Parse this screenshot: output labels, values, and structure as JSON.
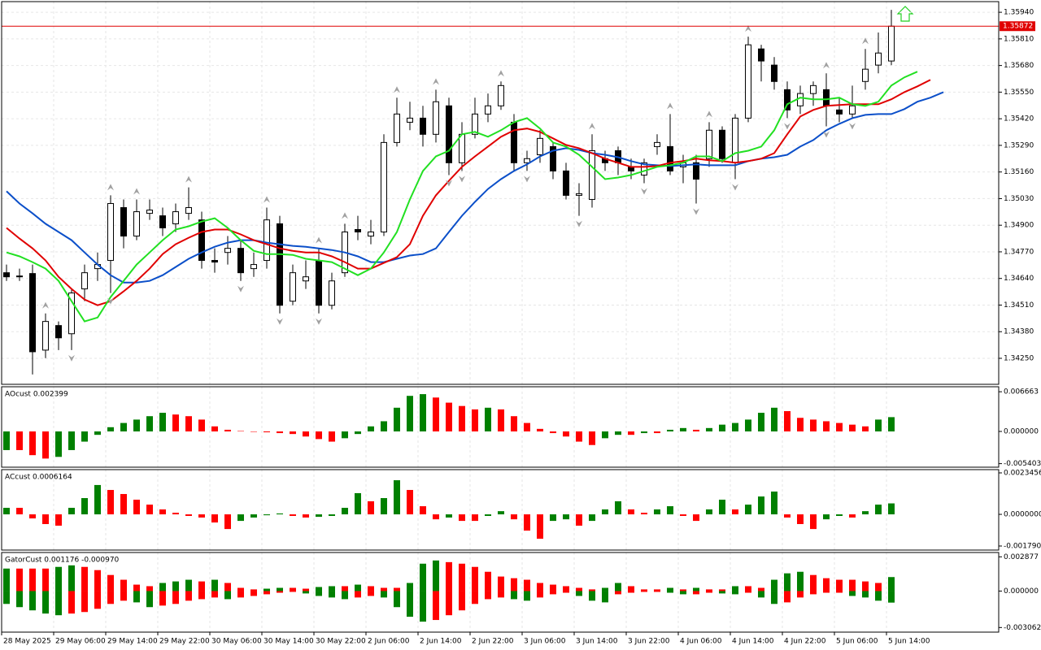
{
  "chart_data": [
    {
      "type": "candlestick",
      "x_labels": [
        "28 May 2025",
        "29 May 06:00",
        "29 May 14:00",
        "29 May 22:00",
        "30 May 06:00",
        "30 May 14:00",
        "30 May 22:00",
        "2 Jun 06:00",
        "2 Jun 14:00",
        "2 Jun 22:00",
        "3 Jun 06:00",
        "3 Jun 14:00",
        "3 Jun 22:00",
        "4 Jun 06:00",
        "4 Jun 14:00",
        "4 Jun 22:00",
        "5 Jun 06:00",
        "5 Jun 14:00"
      ],
      "open": [
        1.34668,
        1.34648,
        1.34664,
        1.3429,
        1.3441,
        1.3437,
        1.34589,
        1.34688,
        1.34728,
        1.34986,
        1.34847,
        1.34958,
        1.34946,
        1.34907,
        1.34958,
        1.34926,
        1.34728,
        1.34767,
        1.34787,
        1.34688,
        1.34728,
        1.34907,
        1.34529,
        1.34628,
        1.34728,
        1.34509,
        1.34668,
        1.34879,
        1.34847,
        1.34867,
        1.35304,
        1.35403,
        1.35423,
        1.35344,
        1.35483,
        1.35205,
        1.35344,
        1.35443,
        1.35483,
        1.35403,
        1.35205,
        1.35244,
        1.35284,
        1.35165,
        1.35046,
        1.35026,
        1.35225,
        1.35264,
        1.35185,
        1.35145,
        1.35284,
        1.35284,
        1.35185,
        1.35205,
        1.35225,
        1.35364,
        1.35205,
        1.35423,
        1.35761,
        1.35682,
        1.35562,
        1.35483,
        1.35543,
        1.35562,
        1.35463,
        1.35443,
        1.35602,
        1.35682,
        1.35702
      ],
      "high": [
        1.34708,
        1.34688,
        1.34708,
        1.34469,
        1.3443,
        1.34589,
        1.34708,
        1.34767,
        1.35046,
        1.35026,
        1.35026,
        1.35026,
        1.34986,
        1.35006,
        1.35085,
        1.34966,
        1.34787,
        1.34847,
        1.34827,
        1.34767,
        1.34986,
        1.34946,
        1.34708,
        1.34728,
        1.34787,
        1.34668,
        1.34907,
        1.34946,
        1.34926,
        1.35344,
        1.35523,
        1.35503,
        1.35483,
        1.35562,
        1.35523,
        1.35403,
        1.35523,
        1.35543,
        1.35602,
        1.35443,
        1.35264,
        1.35364,
        1.35304,
        1.35205,
        1.35105,
        1.35344,
        1.35264,
        1.35284,
        1.35225,
        1.35225,
        1.35344,
        1.35443,
        1.35244,
        1.35244,
        1.35403,
        1.35383,
        1.35443,
        1.35821,
        1.35781,
        1.35721,
        1.35602,
        1.35582,
        1.35602,
        1.35642,
        1.35523,
        1.35582,
        1.35761,
        1.35841,
        1.35952
      ],
      "low": [
        1.34628,
        1.34628,
        1.34171,
        1.34251,
        1.3429,
        1.3429,
        1.34529,
        1.34628,
        1.34569,
        1.34787,
        1.34827,
        1.34926,
        1.34847,
        1.34867,
        1.34926,
        1.34688,
        1.34668,
        1.34708,
        1.34628,
        1.34648,
        1.34688,
        1.34469,
        1.34509,
        1.34589,
        1.34469,
        1.34489,
        1.34648,
        1.34827,
        1.34807,
        1.34847,
        1.35284,
        1.35364,
        1.35284,
        1.35304,
        1.35145,
        1.35165,
        1.35324,
        1.35403,
        1.35463,
        1.35165,
        1.35165,
        1.35205,
        1.35125,
        1.35026,
        1.34946,
        1.34986,
        1.35165,
        1.35145,
        1.35125,
        1.35105,
        1.35244,
        1.35145,
        1.35105,
        1.35006,
        1.35185,
        1.35205,
        1.35125,
        1.35403,
        1.35602,
        1.35562,
        1.35423,
        1.35443,
        1.35483,
        1.35383,
        1.35403,
        1.35423,
        1.35562,
        1.35642,
        1.35682
      ],
      "close": [
        1.34648,
        1.34652,
        1.34282,
        1.3443,
        1.3435,
        1.34569,
        1.34668,
        1.34708,
        1.35006,
        1.34847,
        1.34966,
        1.34974,
        1.34887,
        1.34966,
        1.34986,
        1.34728,
        1.3472,
        1.34787,
        1.34668,
        1.34708,
        1.34926,
        1.34509,
        1.34668,
        1.34648,
        1.34509,
        1.34628,
        1.34867,
        1.34867,
        1.34867,
        1.35304,
        1.35443,
        1.35423,
        1.35344,
        1.35503,
        1.35205,
        1.35344,
        1.35443,
        1.35483,
        1.35582,
        1.35205,
        1.35225,
        1.35324,
        1.35165,
        1.35046,
        1.35054,
        1.35264,
        1.35205,
        1.35205,
        1.35165,
        1.35205,
        1.35304,
        1.35165,
        1.35205,
        1.35125,
        1.35364,
        1.35225,
        1.35423,
        1.35781,
        1.35702,
        1.35602,
        1.35463,
        1.35543,
        1.35582,
        1.35483,
        1.35443,
        1.35483,
        1.35662,
        1.35741,
        1.35872
      ],
      "bull_color": "#ffffff",
      "bear_color": "#000000",
      "lines": [
        {
          "color": "#0b4fc9",
          "values": [
            1.35066,
            1.35006,
            1.34958,
            1.34907,
            1.34867,
            1.34827,
            1.34767,
            1.34708,
            1.34656,
            1.3462,
            1.3462,
            1.34628,
            1.34656,
            1.34696,
            1.34736,
            1.34767,
            1.34795,
            1.34815,
            1.34827,
            1.34827,
            1.34815,
            1.34807,
            1.34799,
            1.34795,
            1.34787,
            1.34779,
            1.34767,
            1.34748,
            1.3472,
            1.3472,
            1.34736,
            1.34752,
            1.34759,
            1.34787,
            1.34867,
            1.34946,
            1.35014,
            1.35077,
            1.35125,
            1.35165,
            1.35197,
            1.35236,
            1.35264,
            1.35276,
            1.35268,
            1.35252,
            1.35244,
            1.35232,
            1.35213,
            1.35197,
            1.35193,
            1.35189,
            1.35193,
            1.35197,
            1.35193,
            1.35193,
            1.35193,
            1.35213,
            1.35225,
            1.35232,
            1.35244,
            1.35284,
            1.35316,
            1.35364,
            1.35395,
            1.35423,
            1.35439,
            1.35443,
            1.35443,
            1.35467,
            1.35503,
            1.35523,
            1.3555
          ]
        },
        {
          "color": "#e00000",
          "values": [
            1.34887,
            1.34835,
            1.34787,
            1.34728,
            1.34648,
            1.34589,
            1.34537,
            1.34509,
            1.34529,
            1.34577,
            1.34628,
            1.34688,
            1.34759,
            1.34807,
            1.34839,
            1.34867,
            1.34879,
            1.34879,
            1.34855,
            1.34827,
            1.34807,
            1.34787,
            1.34775,
            1.34767,
            1.34767,
            1.34748,
            1.3472,
            1.34688,
            1.34688,
            1.34716,
            1.34744,
            1.34807,
            1.34946,
            1.35046,
            1.35117,
            1.35185,
            1.35236,
            1.35284,
            1.35332,
            1.35364,
            1.35372,
            1.35356,
            1.35324,
            1.35292,
            1.35276,
            1.35252,
            1.35225,
            1.35205,
            1.35185,
            1.35185,
            1.35189,
            1.35205,
            1.35213,
            1.35225,
            1.35217,
            1.35213,
            1.35205,
            1.35213,
            1.35225,
            1.35252,
            1.35344,
            1.35431,
            1.35463,
            1.35483,
            1.35487,
            1.35491,
            1.35491,
            1.35491,
            1.35515,
            1.3555,
            1.35578,
            1.3561,
            null
          ]
        },
        {
          "color": "#22e022",
          "values": [
            1.34767,
            1.34748,
            1.3472,
            1.34688,
            1.34628,
            1.34529,
            1.3443,
            1.34449,
            1.34549,
            1.34628,
            1.34708,
            1.34767,
            1.34827,
            1.34879,
            1.34895,
            1.34918,
            1.34934,
            1.34887,
            1.34827,
            1.34775,
            1.34759,
            1.34759,
            1.34755,
            1.34736,
            1.34728,
            1.3472,
            1.34688,
            1.34656,
            1.34688,
            1.34767,
            1.34867,
            1.35026,
            1.35165,
            1.35236,
            1.35264,
            1.35344,
            1.35356,
            1.35332,
            1.35364,
            1.35403,
            1.35423,
            1.35372,
            1.35304,
            1.35284,
            1.35244,
            1.35185,
            1.35125,
            1.35133,
            1.35145,
            1.35165,
            1.35185,
            1.35193,
            1.35205,
            1.35236,
            1.35236,
            1.35213,
            1.35252,
            1.35264,
            1.35284,
            1.35364,
            1.35491,
            1.35523,
            1.35515,
            1.35515,
            1.35523,
            1.35491,
            1.35483,
            1.35503,
            1.35582,
            1.35622,
            1.3565,
            null,
            null
          ]
        }
      ],
      "fractals_up": [
        3,
        8,
        10,
        14,
        20,
        24,
        26,
        30,
        33,
        38,
        45,
        51,
        54,
        57,
        63,
        66
      ],
      "fractals_down": [
        5,
        8,
        18,
        21,
        24,
        34,
        35,
        40,
        44,
        49,
        53,
        56,
        60,
        63,
        65
      ],
      "fractal_color": "#a0a0a0",
      "current_price": 1.35872,
      "current_price_color": "#e00000",
      "ylim": [
        1.34123,
        1.35992
      ],
      "yticks": [
        {
          "value": 1.3594,
          "label": "1.35940"
        },
        {
          "value": 1.3581,
          "label": "1.35810"
        },
        {
          "value": 1.3568,
          "label": "1.35680"
        },
        {
          "value": 1.3555,
          "label": "1.35550"
        },
        {
          "value": 1.3542,
          "label": "1.35420"
        },
        {
          "value": 1.3529,
          "label": "1.35290"
        },
        {
          "value": 1.3516,
          "label": "1.35160"
        },
        {
          "value": 1.3503,
          "label": "1.35030"
        },
        {
          "value": 1.349,
          "label": "1.34900"
        },
        {
          "value": 1.3477,
          "label": "1.34770"
        },
        {
          "value": 1.3464,
          "label": "1.34640"
        },
        {
          "value": 1.3451,
          "label": "1.34510"
        },
        {
          "value": 1.3438,
          "label": "1.34380"
        },
        {
          "value": 1.3425,
          "label": "1.34250"
        }
      ],
      "grid": true
    },
    {
      "type": "histogram",
      "label": "AOcust 0.002399",
      "up_color": "#008000",
      "down_color": "#ff0000",
      "values": [
        -0.00313,
        -0.00313,
        -0.00398,
        -0.00455,
        -0.00427,
        -0.00313,
        -0.00171,
        -0.00057,
        0.00071,
        0.00142,
        0.00199,
        0.00256,
        0.00313,
        0.00284,
        0.00256,
        0.00199,
        0.00085,
        0.00028,
        7e-05,
        -7e-05,
        -0.00014,
        -0.00028,
        -0.00043,
        -0.00085,
        -0.00128,
        -0.00171,
        -0.00114,
        -0.00043,
        0.00085,
        0.00171,
        0.00398,
        0.00597,
        0.00626,
        0.00569,
        0.00483,
        0.00427,
        0.0037,
        0.00398,
        0.0037,
        0.00256,
        0.00142,
        0.00043,
        -0.00028,
        -0.00085,
        -0.00171,
        -0.00228,
        -0.00114,
        -0.00057,
        -0.00057,
        -0.00028,
        -0.00028,
        0.00028,
        0.00057,
        0.00028,
        0.00057,
        0.00114,
        0.00142,
        0.00199,
        0.00313,
        0.00398,
        0.00341,
        0.00228,
        0.00199,
        0.00171,
        0.00142,
        0.00114,
        0.00085,
        0.00199,
        0.0024
      ],
      "ylim": [
        -0.006,
        0.0075
      ],
      "yticks": [
        0.006663,
        {
          "value": 0,
          "label": "0.000000"
        },
        -0.005403
      ]
    },
    {
      "type": "histogram",
      "label": "ACcust 0.0006164",
      "up_color": "#008000",
      "down_color": "#ff0000",
      "values": [
        0.00037,
        0.00037,
        -0.00023,
        -0.00055,
        -0.00064,
        0.00037,
        0.00092,
        0.00166,
        0.00138,
        0.00115,
        0.00083,
        0.00055,
        0.00028,
        9e-05,
        -9e-05,
        -0.00018,
        -0.00046,
        -0.00083,
        -0.00037,
        -0.00018,
        -5e-05,
        5e-05,
        -9e-05,
        -0.00018,
        -0.00014,
        -9e-05,
        0.00037,
        0.0012,
        0.00074,
        0.00092,
        0.00193,
        0.00138,
        0.00046,
        -0.00028,
        -0.00018,
        -0.00037,
        -0.00037,
        -9e-05,
        0.00018,
        -0.00028,
        -0.00092,
        -0.00138,
        -0.00037,
        -0.00028,
        -0.00064,
        -0.00037,
        0.00028,
        0.00074,
        0.00028,
        9e-05,
        0.00028,
        0.00046,
        -9e-05,
        -0.00037,
        0.00028,
        0.00083,
        0.00028,
        0.00055,
        0.00101,
        0.00129,
        -0.00018,
        -0.00055,
        -0.00083,
        -0.00028,
        -9e-05,
        -0.00018,
        0.00018,
        0.00055,
        0.00062
      ],
      "ylim": [
        -0.00202,
        0.00253
      ],
      "yticks": [
        0.0023456,
        {
          "value": 0,
          "label": "0.0000000"
        },
        {
          "value": -0.00179,
          "label": "-0.0017900"
        }
      ]
    },
    {
      "type": "gator",
      "label": "GatorCust 0.001176 -0.000970",
      "up_color": "#008000",
      "down_color": "#ff0000",
      "upper": [
        0.00189,
        0.00189,
        0.00189,
        0.00189,
        0.00203,
        0.00216,
        0.00203,
        0.00176,
        0.00135,
        0.00095,
        0.00054,
        0.00041,
        0.00068,
        0.00081,
        0.00095,
        0.00081,
        0.00095,
        0.00068,
        0.00027,
        0.00014,
        0.0002,
        0.00027,
        0.00027,
        0.0002,
        0.00034,
        0.00041,
        0.00041,
        0.00054,
        0.00041,
        0.00027,
        0.00027,
        0.00068,
        0.0023,
        0.00257,
        0.00243,
        0.0023,
        0.00203,
        0.00162,
        0.00122,
        0.00108,
        0.00095,
        0.00068,
        0.00054,
        0.00041,
        0.00027,
        0.00014,
        0.00027,
        0.00068,
        0.00041,
        0.00014,
        0.00014,
        0.00027,
        0.00014,
        0.00027,
        0.00014,
        0.00014,
        0.00041,
        0.00041,
        0.00027,
        0.00095,
        0.00149,
        0.00162,
        0.00135,
        0.00108,
        0.00095,
        0.00095,
        0.00081,
        0.00068,
        0.001176
      ],
      "lower": [
        -0.00108,
        -0.00135,
        -0.00162,
        -0.00189,
        -0.00203,
        -0.00189,
        -0.00176,
        -0.00149,
        -0.00108,
        -0.00081,
        -0.00095,
        -0.00135,
        -0.00122,
        -0.00108,
        -0.00081,
        -0.00068,
        -0.00054,
        -0.00068,
        -0.00054,
        -0.00041,
        -0.00027,
        -0.00014,
        -7e-05,
        -0.0002,
        -0.00041,
        -0.00054,
        -0.00068,
        -0.00054,
        -0.00041,
        -0.00054,
        -0.00135,
        -0.00216,
        -0.00257,
        -0.00243,
        -0.00203,
        -0.00162,
        -0.00108,
        -0.00068,
        -0.00054,
        -0.00068,
        -0.00081,
        -0.00054,
        -0.00027,
        -0.00014,
        -0.00041,
        -0.00081,
        -0.00095,
        -0.00027,
        -0.00014,
        -7e-05,
        -7e-05,
        -0.00014,
        -0.00027,
        -0.00027,
        -0.00014,
        -0.0002,
        -0.00027,
        -0.00014,
        -0.00054,
        -0.00108,
        -0.00095,
        -0.00054,
        -0.00027,
        -0.00014,
        -0.00014,
        -0.00041,
        -0.00054,
        -0.00081,
        -0.00097
      ],
      "ylim": [
        -0.00345,
        0.00324
      ],
      "yticks": [
        0.002877,
        {
          "value": 0,
          "label": "0.000000"
        },
        -0.003062
      ]
    }
  ]
}
